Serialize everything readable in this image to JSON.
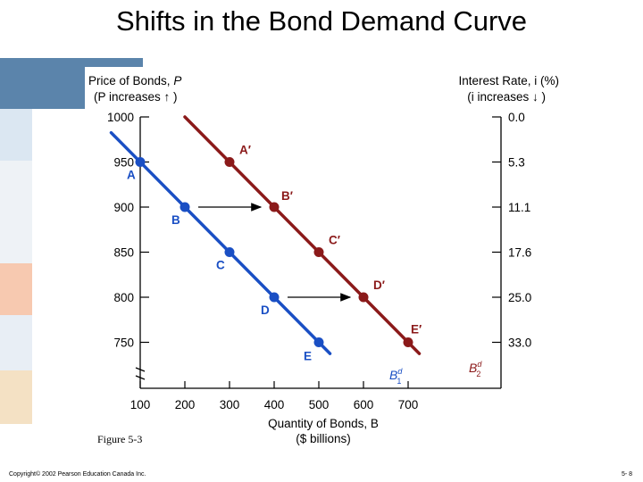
{
  "slide": {
    "title": "Shifts in the Bond Demand Curve",
    "figure_caption": "Figure 5-3",
    "copyright": "Copyright© 2002 Pearson Education Canada Inc.",
    "page": "5- 8"
  },
  "colors": {
    "deco_blue": "#5b84ab",
    "deco_light_blue": "#dbe7f2",
    "deco_peach": "#f7c9b0",
    "deco_cream": "#f4e1c4",
    "series_blue": "#1a4fc4",
    "series_red": "#8b1a1a"
  },
  "chart_data": {
    "type": "line",
    "left_axis": {
      "label_line1": "Price of Bonds, ",
      "label_var": "P",
      "label_line2": "(P increases ↑ )",
      "ticks": [
        1000,
        950,
        900,
        850,
        800,
        750
      ],
      "ylim": [
        720,
        1000
      ]
    },
    "right_axis": {
      "label_line1": "Interest Rate, i (%)",
      "label_line2": "(i increases ↓ )",
      "ticks": [
        "0.0",
        "5.3",
        "11.1",
        "17.6",
        "25.0",
        "33.0"
      ]
    },
    "x_axis": {
      "label_line1": "Quantity of Bonds, B",
      "label_line2": "($ billions)",
      "ticks": [
        100,
        200,
        300,
        400,
        500,
        600,
        700
      ],
      "xlim": [
        0,
        700
      ]
    },
    "series": [
      {
        "name": "B1d",
        "color": "#1a4fc4",
        "points": [
          {
            "label": "A",
            "x": 100,
            "y": 950
          },
          {
            "label": "B",
            "x": 200,
            "y": 900
          },
          {
            "label": "C",
            "x": 300,
            "y": 850
          },
          {
            "label": "D",
            "x": 400,
            "y": 800
          },
          {
            "label": "E",
            "x": 500,
            "y": 750
          }
        ],
        "line_x": [
          35,
          525
        ]
      },
      {
        "name": "B2d",
        "color": "#8b1a1a",
        "points": [
          {
            "label": "A′",
            "x": 300,
            "y": 950
          },
          {
            "label": "B′",
            "x": 400,
            "y": 900
          },
          {
            "label": "C′",
            "x": 500,
            "y": 850
          },
          {
            "label": "D′",
            "x": 600,
            "y": 800
          },
          {
            "label": "E′",
            "x": 700,
            "y": 750
          }
        ],
        "line_x": [
          200,
          725
        ]
      }
    ],
    "shift_arrows": [
      {
        "from_x": 230,
        "to_x": 370,
        "y": 900
      },
      {
        "from_x": 430,
        "to_x": 570,
        "y": 800
      }
    ]
  }
}
